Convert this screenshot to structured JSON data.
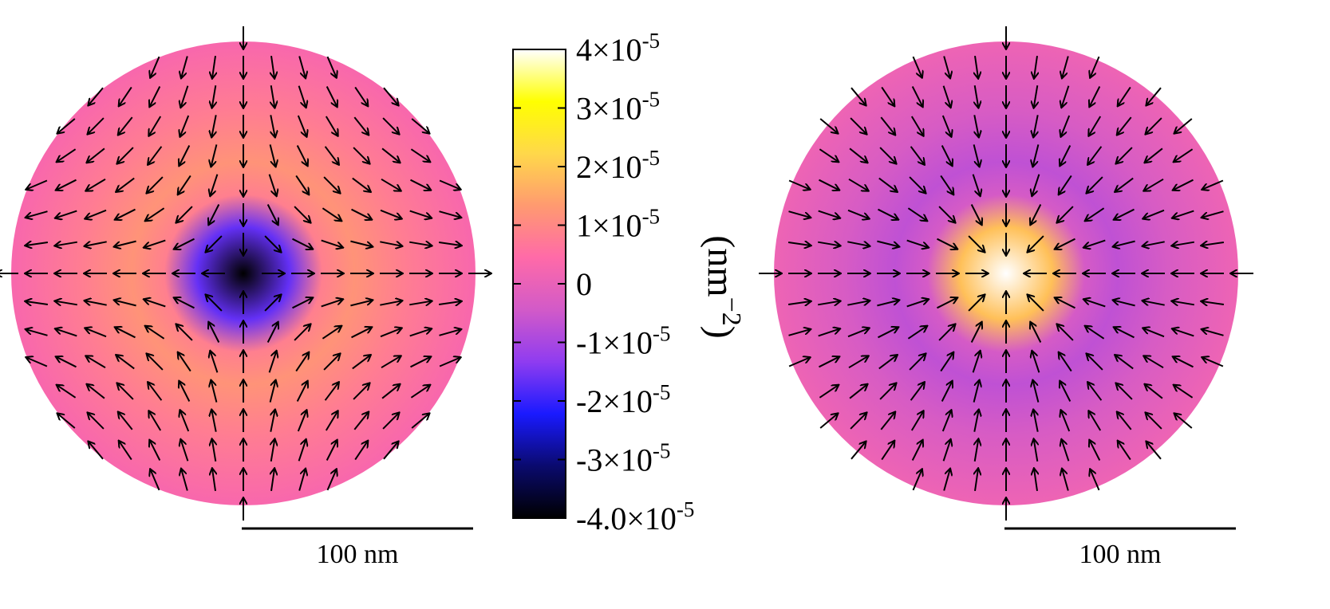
{
  "colorbar": {
    "unit_base": "(nm",
    "unit_exp": "−2",
    "unit_close": ")",
    "ticks": [
      {
        "value": 4e-05,
        "mant": "4×10",
        "exp": "-5"
      },
      {
        "value": 3e-05,
        "mant": "3×10",
        "exp": "-5"
      },
      {
        "value": 2e-05,
        "mant": "2×10",
        "exp": "-5"
      },
      {
        "value": 1e-05,
        "mant": "1×10",
        "exp": "-5"
      },
      {
        "value": 0,
        "mant": "0",
        "exp": ""
      },
      {
        "value": -1e-05,
        "mant": "-1×10",
        "exp": "-5"
      },
      {
        "value": -2e-05,
        "mant": "-2×10",
        "exp": "-5"
      },
      {
        "value": -3e-05,
        "mant": "-3×10",
        "exp": "-5"
      },
      {
        "value": -4e-05,
        "mant": "-4.0×10",
        "exp": "-5"
      }
    ],
    "range": [
      -4e-05,
      4e-05
    ],
    "colormap": [
      "#000000",
      "#0a0a6e",
      "#1a1aff",
      "#8f3cf0",
      "#d25ac8",
      "#ff6aa8",
      "#ff9a70",
      "#ffd84a",
      "#ffff00",
      "#ffffff"
    ]
  },
  "panels": [
    {
      "name": "left",
      "scale_bar_label": "100 nm",
      "center_value": -4e-05,
      "ring_value": 1.2e-05,
      "edge_value": 3e-06,
      "field": "saddle"
    },
    {
      "name": "right",
      "scale_bar_label": "100 nm",
      "center_value": 4e-05,
      "ring_value": -7e-06,
      "edge_value": 1e-06,
      "field": "sink"
    }
  ]
}
